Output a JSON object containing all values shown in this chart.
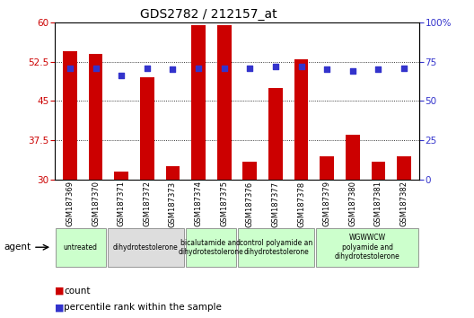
{
  "title": "GDS2782 / 212157_at",
  "categories": [
    "GSM187369",
    "GSM187370",
    "GSM187371",
    "GSM187372",
    "GSM187373",
    "GSM187374",
    "GSM187375",
    "GSM187376",
    "GSM187377",
    "GSM187378",
    "GSM187379",
    "GSM187380",
    "GSM187381",
    "GSM187382"
  ],
  "bar_values": [
    54.5,
    54.0,
    31.5,
    49.5,
    32.5,
    59.5,
    59.5,
    33.5,
    47.5,
    53.0,
    34.5,
    38.5,
    33.5,
    34.5
  ],
  "dot_values": [
    71,
    71,
    66,
    71,
    70,
    71,
    71,
    71,
    72,
    72,
    70,
    69,
    70,
    71
  ],
  "bar_color": "#cc0000",
  "dot_color": "#3333cc",
  "ylim_left": [
    30,
    60
  ],
  "ylim_right": [
    0,
    100
  ],
  "yticks_left": [
    30,
    37.5,
    45,
    52.5,
    60
  ],
  "yticks_right": [
    0,
    25,
    50,
    75,
    100
  ],
  "agent_groups": [
    {
      "label": "untreated",
      "start": 0,
      "end": 2,
      "color": "#ccffcc"
    },
    {
      "label": "dihydrotestolerone",
      "start": 2,
      "end": 5,
      "color": "#dddddd"
    },
    {
      "label": "bicalutamide and\ndihydrotestolerone",
      "start": 5,
      "end": 7,
      "color": "#ccffcc"
    },
    {
      "label": "control polyamide an\ndihydrotestolerone",
      "start": 7,
      "end": 10,
      "color": "#ccffcc"
    },
    {
      "label": "WGWWCW\npolyamide and\ndihydrotestolerone",
      "start": 10,
      "end": 14,
      "color": "#ccffcc"
    }
  ],
  "agent_label": "agent",
  "legend_count_label": "count",
  "legend_pct_label": "percentile rank within the sample",
  "background_color": "#ffffff",
  "plot_bg_color": "#ffffff"
}
